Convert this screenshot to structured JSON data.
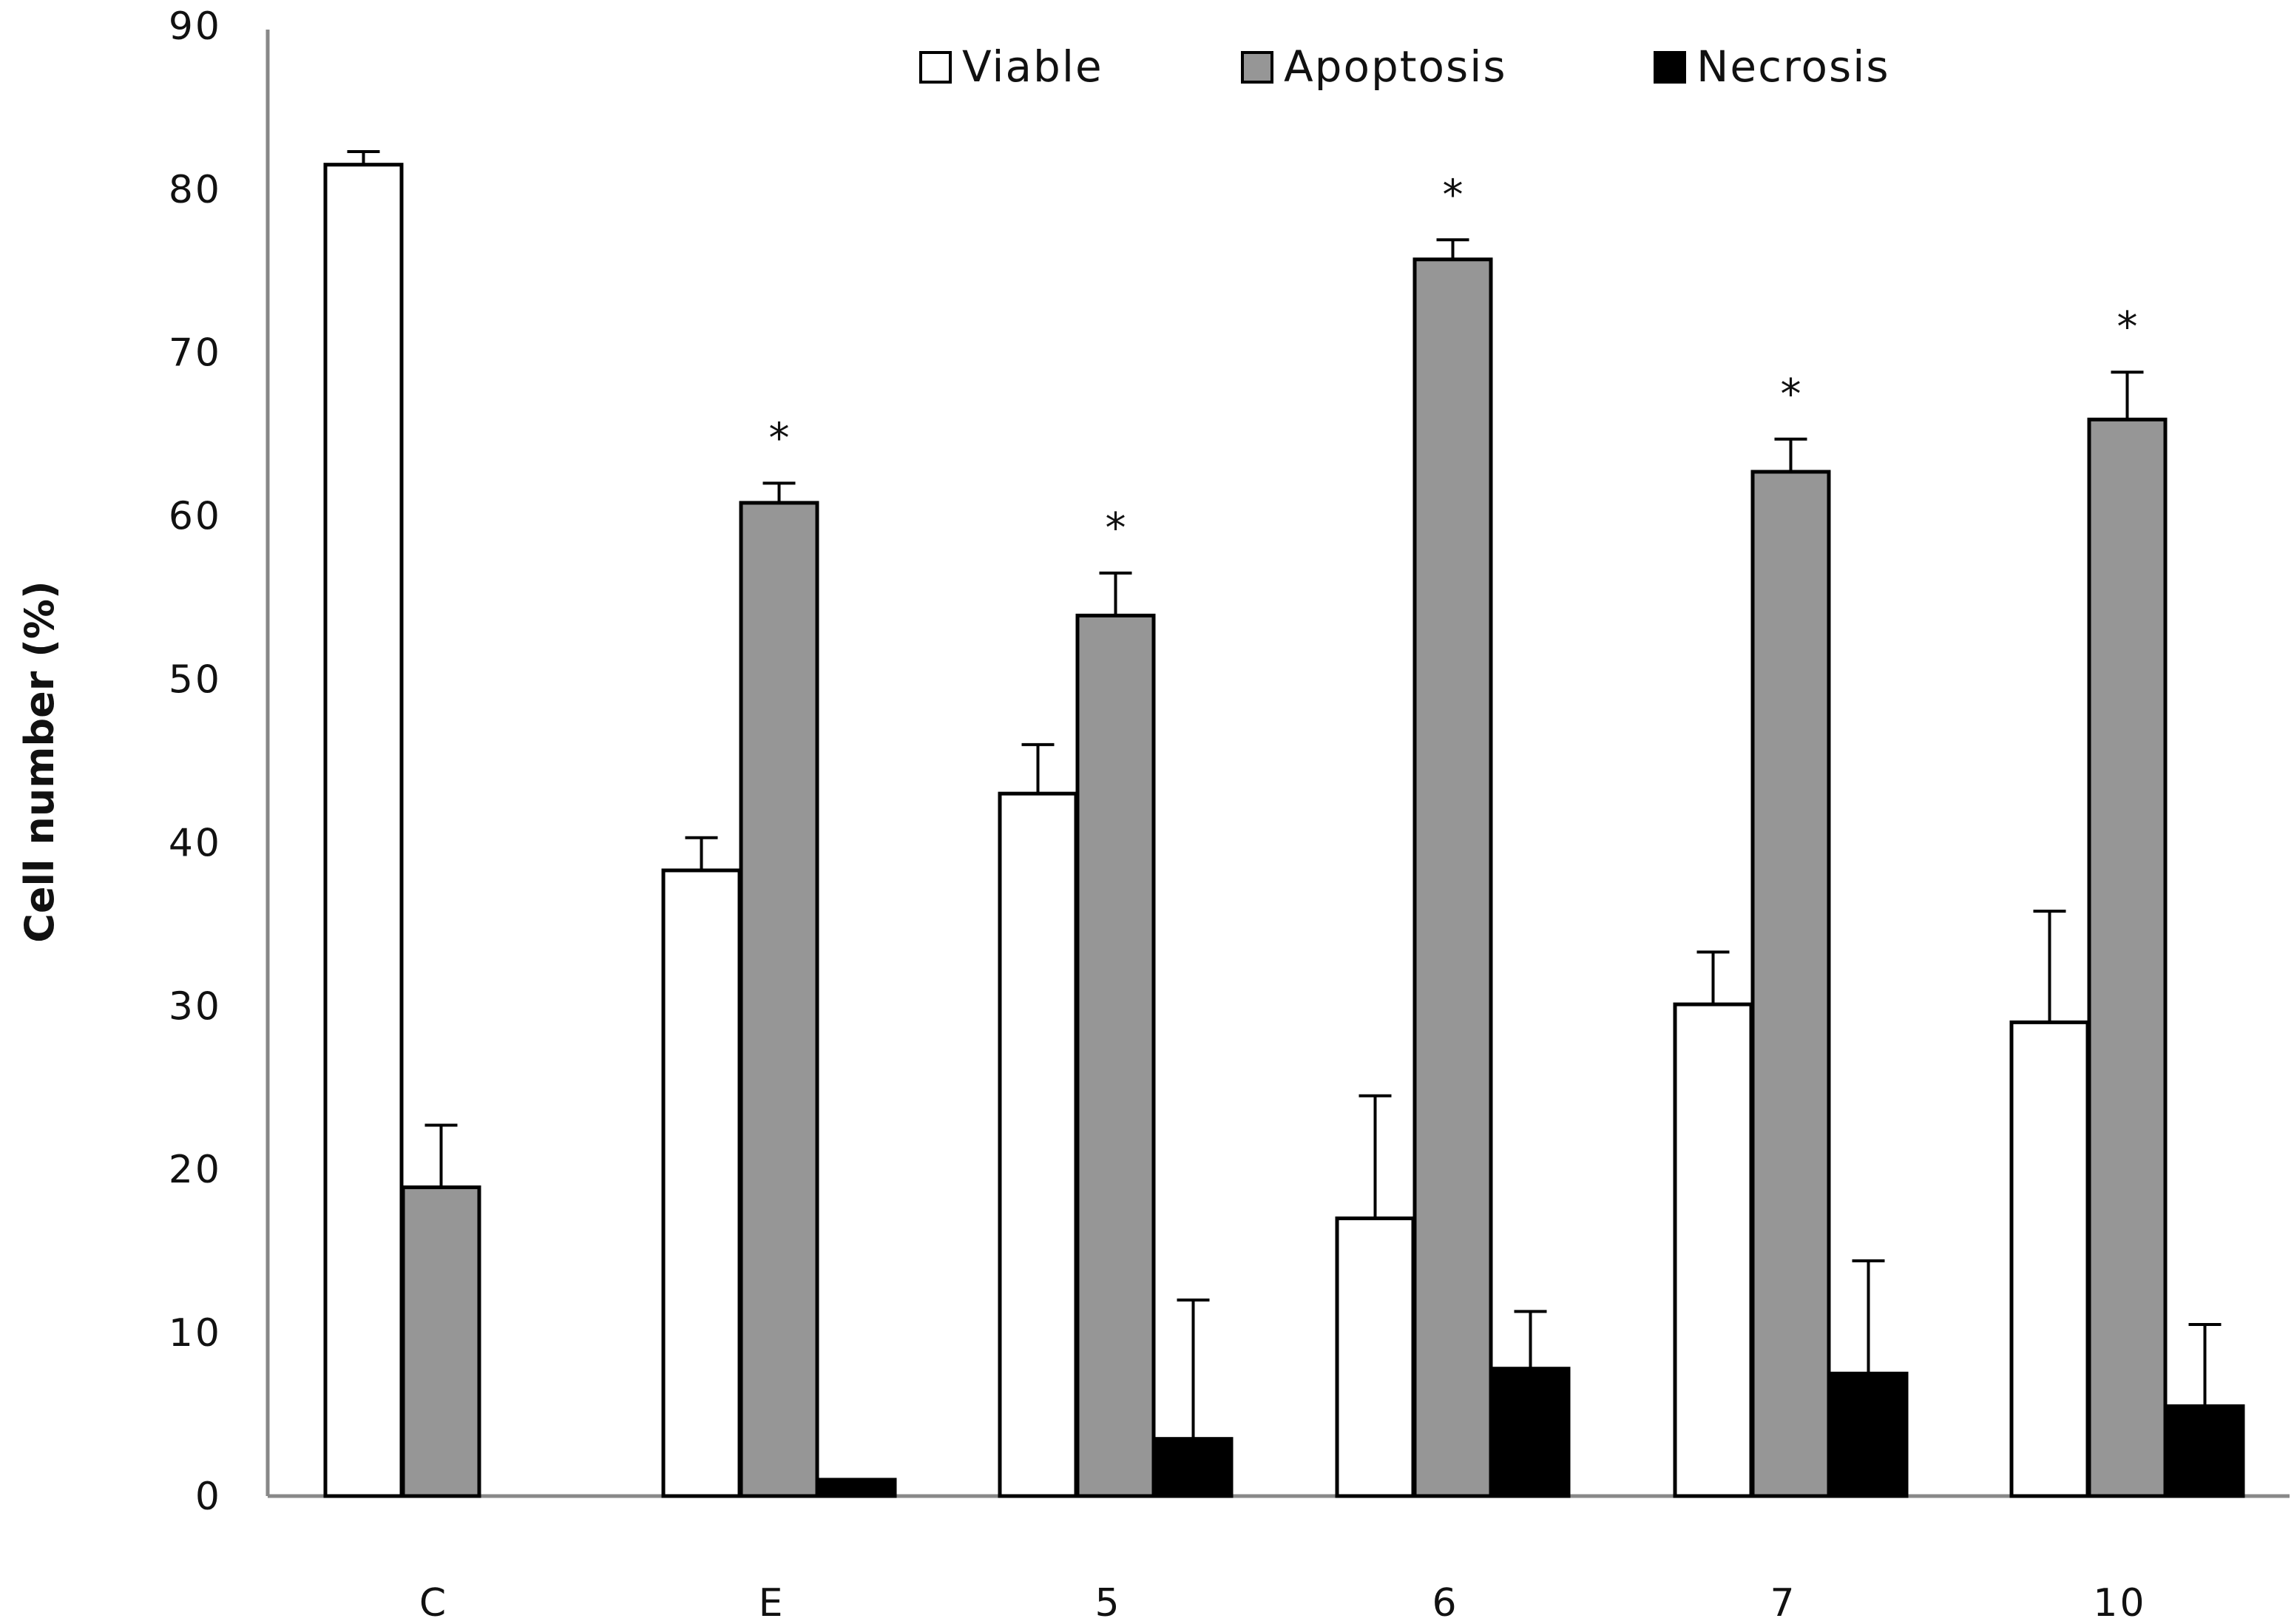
{
  "chart_data": {
    "type": "bar",
    "title": "",
    "xlabel": "",
    "ylabel": "Cell number (%)",
    "ylim": [
      0,
      90
    ],
    "yticks": [
      0,
      10,
      20,
      30,
      40,
      50,
      60,
      70,
      80,
      90
    ],
    "categories": [
      "C",
      "E",
      "5",
      "6",
      "7",
      "10"
    ],
    "series": [
      {
        "name": "Viable",
        "color": "#ffffff",
        "values": [
          81.5,
          38.3,
          43.0,
          17.0,
          30.1,
          29.0
        ],
        "errors": [
          0.8,
          2.0,
          3.0,
          7.5,
          3.2,
          6.8
        ]
      },
      {
        "name": "Apoptosis",
        "color": "#969696",
        "values": [
          18.9,
          60.8,
          53.9,
          75.7,
          62.7,
          65.9
        ],
        "errors": [
          3.8,
          1.2,
          2.6,
          1.2,
          2.0,
          2.9
        ]
      },
      {
        "name": "Necrosis",
        "color": "#000000",
        "values": [
          0,
          1.0,
          3.5,
          7.8,
          7.5,
          5.5
        ],
        "errors": [
          0,
          0,
          8.5,
          3.5,
          6.9,
          5.0
        ]
      }
    ],
    "significance": [
      "",
      "*",
      "*",
      "*",
      "*",
      "*"
    ],
    "legend_position": "top-right"
  }
}
